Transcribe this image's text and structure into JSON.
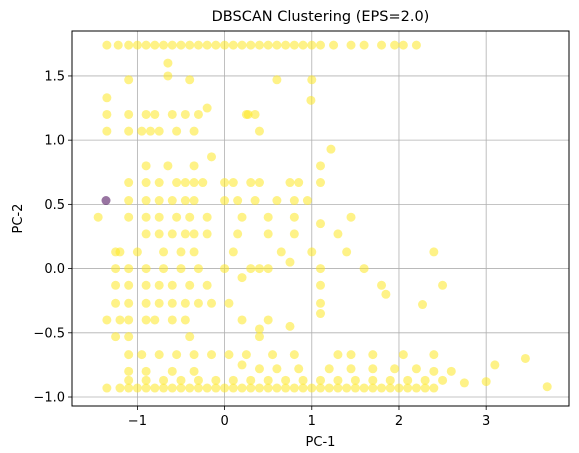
{
  "chart_data": {
    "type": "scatter",
    "title": "DBSCAN Clustering (EPS=2.0)",
    "xlabel": "PC-1",
    "ylabel": "PC-2",
    "xlim": [
      -1.75,
      3.95
    ],
    "ylim": [
      -1.07,
      1.85
    ],
    "xticks": [
      -1,
      0,
      1,
      2,
      3
    ],
    "xtick_labels": [
      "−1",
      "0",
      "1",
      "2",
      "3"
    ],
    "yticks": [
      -1.0,
      -0.5,
      0.0,
      0.5,
      1.0,
      1.5
    ],
    "ytick_labels": [
      "−1.0",
      "−0.5",
      "0.0",
      "0.5",
      "1.0",
      "1.5"
    ],
    "grid": true,
    "colors": {
      "cluster_0": "#fde725",
      "noise": "#440154"
    },
    "series": [
      {
        "cluster": "noise",
        "points": [
          [
            -1.36,
            0.53
          ]
        ]
      },
      {
        "cluster": "cluster_0",
        "points": [
          [
            -1.35,
            1.74
          ],
          [
            -1.22,
            1.74
          ],
          [
            -1.1,
            1.74
          ],
          [
            -1.0,
            1.74
          ],
          [
            -0.9,
            1.74
          ],
          [
            -0.8,
            1.74
          ],
          [
            -0.7,
            1.74
          ],
          [
            -0.6,
            1.74
          ],
          [
            -0.5,
            1.74
          ],
          [
            -0.4,
            1.74
          ],
          [
            -0.3,
            1.74
          ],
          [
            -0.2,
            1.74
          ],
          [
            -0.1,
            1.74
          ],
          [
            0.0,
            1.74
          ],
          [
            0.1,
            1.74
          ],
          [
            0.2,
            1.74
          ],
          [
            0.3,
            1.74
          ],
          [
            0.4,
            1.74
          ],
          [
            0.5,
            1.74
          ],
          [
            0.6,
            1.74
          ],
          [
            0.7,
            1.74
          ],
          [
            0.8,
            1.74
          ],
          [
            0.9,
            1.74
          ],
          [
            1.0,
            1.74
          ],
          [
            1.1,
            1.74
          ],
          [
            1.25,
            1.74
          ],
          [
            1.45,
            1.74
          ],
          [
            1.6,
            1.74
          ],
          [
            1.8,
            1.74
          ],
          [
            1.95,
            1.74
          ],
          [
            2.05,
            1.74
          ],
          [
            2.2,
            1.74
          ],
          [
            -0.65,
            1.6
          ],
          [
            -0.65,
            1.5
          ],
          [
            -1.1,
            1.47
          ],
          [
            -0.4,
            1.47
          ],
          [
            0.6,
            1.47
          ],
          [
            1.0,
            1.47
          ],
          [
            -1.35,
            1.33
          ],
          [
            0.99,
            1.31
          ],
          [
            -0.2,
            1.25
          ],
          [
            -1.35,
            1.2
          ],
          [
            -1.1,
            1.2
          ],
          [
            -0.9,
            1.2
          ],
          [
            -0.8,
            1.2
          ],
          [
            -0.6,
            1.2
          ],
          [
            -0.45,
            1.2
          ],
          [
            -0.3,
            1.2
          ],
          [
            0.25,
            1.2
          ],
          [
            0.27,
            1.2
          ],
          [
            0.35,
            1.2
          ],
          [
            -1.35,
            1.07
          ],
          [
            -1.1,
            1.07
          ],
          [
            -0.95,
            1.07
          ],
          [
            -0.85,
            1.07
          ],
          [
            -0.75,
            1.07
          ],
          [
            -0.55,
            1.07
          ],
          [
            -0.35,
            1.07
          ],
          [
            0.4,
            1.07
          ],
          [
            1.22,
            0.93
          ],
          [
            -0.15,
            0.87
          ],
          [
            1.1,
            0.8
          ],
          [
            -0.9,
            0.8
          ],
          [
            -0.65,
            0.8
          ],
          [
            -0.35,
            0.8
          ],
          [
            -1.1,
            0.67
          ],
          [
            -0.9,
            0.67
          ],
          [
            -0.75,
            0.67
          ],
          [
            -0.55,
            0.67
          ],
          [
            -0.45,
            0.67
          ],
          [
            -0.35,
            0.67
          ],
          [
            -0.25,
            0.67
          ],
          [
            0.0,
            0.67
          ],
          [
            0.1,
            0.67
          ],
          [
            0.3,
            0.67
          ],
          [
            0.4,
            0.67
          ],
          [
            0.75,
            0.67
          ],
          [
            0.85,
            0.67
          ],
          [
            1.1,
            0.67
          ],
          [
            -1.1,
            0.53
          ],
          [
            -0.9,
            0.53
          ],
          [
            -0.75,
            0.53
          ],
          [
            -0.6,
            0.53
          ],
          [
            -0.45,
            0.53
          ],
          [
            -0.35,
            0.53
          ],
          [
            0.0,
            0.53
          ],
          [
            0.15,
            0.53
          ],
          [
            0.35,
            0.53
          ],
          [
            0.6,
            0.53
          ],
          [
            0.8,
            0.53
          ],
          [
            0.95,
            0.53
          ],
          [
            -1.45,
            0.4
          ],
          [
            -1.1,
            0.4
          ],
          [
            -0.9,
            0.4
          ],
          [
            -0.75,
            0.4
          ],
          [
            -0.55,
            0.4
          ],
          [
            -0.4,
            0.4
          ],
          [
            -0.2,
            0.4
          ],
          [
            0.2,
            0.4
          ],
          [
            0.5,
            0.4
          ],
          [
            0.8,
            0.4
          ],
          [
            1.45,
            0.4
          ],
          [
            1.1,
            0.35
          ],
          [
            -0.9,
            0.27
          ],
          [
            -0.75,
            0.27
          ],
          [
            -0.6,
            0.27
          ],
          [
            -0.45,
            0.27
          ],
          [
            -0.35,
            0.27
          ],
          [
            -0.2,
            0.27
          ],
          [
            0.15,
            0.27
          ],
          [
            0.5,
            0.27
          ],
          [
            0.8,
            0.27
          ],
          [
            1.3,
            0.27
          ],
          [
            -1.25,
            0.13
          ],
          [
            -1.2,
            0.13
          ],
          [
            -1.0,
            0.13
          ],
          [
            -0.7,
            0.13
          ],
          [
            -0.5,
            0.13
          ],
          [
            -0.35,
            0.13
          ],
          [
            0.1,
            0.13
          ],
          [
            0.65,
            0.13
          ],
          [
            1.0,
            0.13
          ],
          [
            1.4,
            0.13
          ],
          [
            2.4,
            0.13
          ],
          [
            0.75,
            0.05
          ],
          [
            0.5,
            0.0
          ],
          [
            0.4,
            0.0
          ],
          [
            0.2,
            -0.07
          ],
          [
            -1.25,
            0.0
          ],
          [
            -1.1,
            0.0
          ],
          [
            -0.9,
            0.0
          ],
          [
            -0.7,
            0.0
          ],
          [
            -0.5,
            0.0
          ],
          [
            -0.3,
            0.0
          ],
          [
            0.0,
            0.0
          ],
          [
            0.3,
            0.0
          ],
          [
            1.1,
            0.0
          ],
          [
            1.6,
            0.0
          ],
          [
            -1.25,
            -0.13
          ],
          [
            -1.1,
            -0.13
          ],
          [
            -0.9,
            -0.13
          ],
          [
            -0.75,
            -0.13
          ],
          [
            -0.6,
            -0.13
          ],
          [
            -0.4,
            -0.13
          ],
          [
            -0.2,
            -0.13
          ],
          [
            1.1,
            -0.13
          ],
          [
            1.8,
            -0.13
          ],
          [
            2.5,
            -0.13
          ],
          [
            -1.25,
            -0.27
          ],
          [
            -1.1,
            -0.27
          ],
          [
            -0.9,
            -0.27
          ],
          [
            -0.75,
            -0.27
          ],
          [
            -0.6,
            -0.27
          ],
          [
            -0.45,
            -0.27
          ],
          [
            -0.3,
            -0.27
          ],
          [
            -0.15,
            -0.27
          ],
          [
            0.05,
            -0.27
          ],
          [
            1.1,
            -0.27
          ],
          [
            1.85,
            -0.2
          ],
          [
            2.27,
            -0.28
          ],
          [
            -1.35,
            -0.4
          ],
          [
            -1.2,
            -0.4
          ],
          [
            -1.1,
            -0.4
          ],
          [
            -0.9,
            -0.4
          ],
          [
            -0.8,
            -0.4
          ],
          [
            -0.6,
            -0.4
          ],
          [
            -0.45,
            -0.4
          ],
          [
            0.2,
            -0.4
          ],
          [
            0.5,
            -0.4
          ],
          [
            0.75,
            -0.45
          ],
          [
            1.1,
            -0.35
          ],
          [
            0.4,
            -0.47
          ],
          [
            0.4,
            -0.53
          ],
          [
            -1.1,
            -0.53
          ],
          [
            -1.25,
            -0.53
          ],
          [
            -0.4,
            -0.53
          ],
          [
            -1.1,
            -0.67
          ],
          [
            -0.95,
            -0.67
          ],
          [
            -0.75,
            -0.67
          ],
          [
            -0.55,
            -0.67
          ],
          [
            -0.35,
            -0.67
          ],
          [
            -0.15,
            -0.67
          ],
          [
            0.05,
            -0.67
          ],
          [
            0.25,
            -0.67
          ],
          [
            0.55,
            -0.67
          ],
          [
            0.8,
            -0.67
          ],
          [
            1.3,
            -0.67
          ],
          [
            1.45,
            -0.67
          ],
          [
            1.7,
            -0.67
          ],
          [
            2.05,
            -0.67
          ],
          [
            2.4,
            -0.67
          ],
          [
            3.45,
            -0.7
          ],
          [
            3.1,
            -0.75
          ],
          [
            -1.1,
            -0.8
          ],
          [
            -0.9,
            -0.8
          ],
          [
            -0.6,
            -0.8
          ],
          [
            -0.35,
            -0.8
          ],
          [
            0.2,
            -0.75
          ],
          [
            0.4,
            -0.78
          ],
          [
            0.6,
            -0.78
          ],
          [
            0.85,
            -0.78
          ],
          [
            1.2,
            -0.78
          ],
          [
            1.45,
            -0.78
          ],
          [
            1.7,
            -0.78
          ],
          [
            1.95,
            -0.78
          ],
          [
            2.2,
            -0.78
          ],
          [
            2.4,
            -0.8
          ],
          [
            2.6,
            -0.8
          ],
          [
            -1.35,
            -0.93
          ],
          [
            -1.2,
            -0.93
          ],
          [
            -1.1,
            -0.93
          ],
          [
            -1.0,
            -0.93
          ],
          [
            -0.9,
            -0.93
          ],
          [
            -0.8,
            -0.93
          ],
          [
            -0.7,
            -0.93
          ],
          [
            -0.6,
            -0.93
          ],
          [
            -0.5,
            -0.93
          ],
          [
            -0.4,
            -0.93
          ],
          [
            -0.3,
            -0.93
          ],
          [
            -0.2,
            -0.93
          ],
          [
            -0.1,
            -0.93
          ],
          [
            0.0,
            -0.93
          ],
          [
            0.1,
            -0.93
          ],
          [
            0.2,
            -0.93
          ],
          [
            0.3,
            -0.93
          ],
          [
            0.4,
            -0.93
          ],
          [
            0.5,
            -0.93
          ],
          [
            0.6,
            -0.93
          ],
          [
            0.7,
            -0.93
          ],
          [
            0.8,
            -0.93
          ],
          [
            0.9,
            -0.93
          ],
          [
            1.0,
            -0.93
          ],
          [
            1.1,
            -0.93
          ],
          [
            1.2,
            -0.93
          ],
          [
            1.3,
            -0.93
          ],
          [
            1.4,
            -0.93
          ],
          [
            1.5,
            -0.93
          ],
          [
            1.6,
            -0.93
          ],
          [
            1.7,
            -0.93
          ],
          [
            1.8,
            -0.93
          ],
          [
            1.9,
            -0.93
          ],
          [
            2.0,
            -0.93
          ],
          [
            2.1,
            -0.93
          ],
          [
            2.2,
            -0.93
          ],
          [
            2.3,
            -0.93
          ],
          [
            2.4,
            -0.93
          ],
          [
            3.7,
            -0.92
          ],
          [
            -1.1,
            -0.87
          ],
          [
            -0.9,
            -0.87
          ],
          [
            -0.7,
            -0.87
          ],
          [
            -0.5,
            -0.87
          ],
          [
            -0.3,
            -0.87
          ],
          [
            -0.1,
            -0.87
          ],
          [
            0.1,
            -0.87
          ],
          [
            0.3,
            -0.87
          ],
          [
            0.5,
            -0.87
          ],
          [
            0.7,
            -0.87
          ],
          [
            0.9,
            -0.87
          ],
          [
            1.1,
            -0.87
          ],
          [
            1.3,
            -0.87
          ],
          [
            1.5,
            -0.87
          ],
          [
            1.7,
            -0.87
          ],
          [
            1.9,
            -0.87
          ],
          [
            2.1,
            -0.87
          ],
          [
            2.3,
            -0.87
          ],
          [
            2.5,
            -0.87
          ],
          [
            2.75,
            -0.89
          ],
          [
            3.0,
            -0.88
          ]
        ]
      }
    ]
  }
}
